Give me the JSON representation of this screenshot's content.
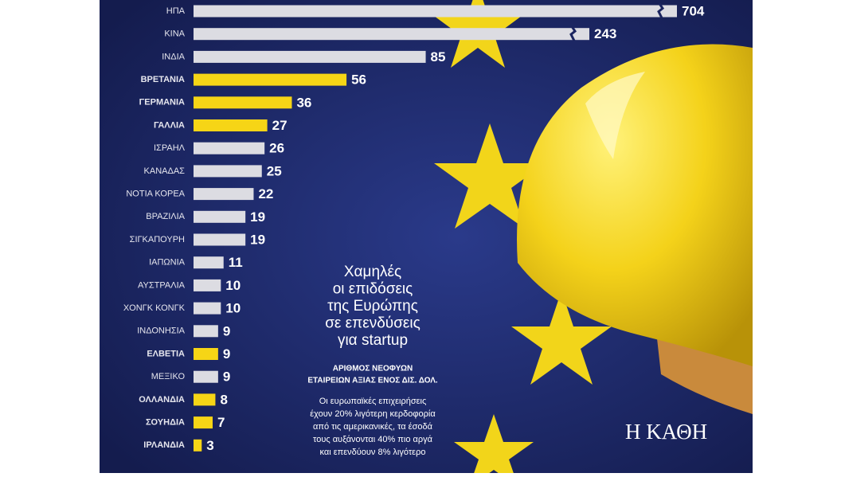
{
  "chart_data": {
    "type": "bar",
    "categories": [
      "ΗΠΑ",
      "ΚΙΝΑ",
      "ΙΝΔΙΑ",
      "ΒΡΕΤΑΝΙΑ",
      "ΓΕΡΜΑΝΙΑ",
      "ΓΑΛΛΙΑ",
      "ΙΣΡΑΗΛ",
      "ΚΑΝΑΔΑΣ",
      "ΝΟΤΙΑ ΚΟΡΕΑ",
      "ΒΡΑΖΙΛΙΑ",
      "ΣΙΓΚΑΠΟΥΡΗ",
      "ΙΑΠΩΝΙΑ",
      "ΑΥΣΤΡΑΛΙΑ",
      "ΧΟΝΓΚ ΚΟΝΓΚ",
      "ΙΝΔΟΝΗΣΙΑ",
      "ΕΛΒΕΤΙΑ",
      "ΜΕΞΙΚΟ",
      "ΟΛΛΑΝΔΙΑ",
      "ΣΟΥΗΔΙΑ",
      "ΙΡΛΑΝΔΙΑ"
    ],
    "values": [
      704,
      243,
      85,
      56,
      36,
      27,
      26,
      25,
      22,
      19,
      19,
      11,
      10,
      10,
      9,
      9,
      9,
      8,
      7,
      3
    ],
    "colors": [
      "#dcdce2",
      "#dcdce2",
      "#dcdce2",
      "#f6d516",
      "#f6d516",
      "#f6d516",
      "#dcdce2",
      "#dcdce2",
      "#dcdce2",
      "#dcdce2",
      "#dcdce2",
      "#dcdce2",
      "#dcdce2",
      "#dcdce2",
      "#dcdce2",
      "#f6d516",
      "#dcdce2",
      "#f6d516",
      "#f6d516",
      "#f6d516"
    ],
    "highlight_color": "#f6d516",
    "title_lines": [
      "Χαμηλές",
      "οι επιδόσεις",
      "της Ευρώπης",
      "σε επενδύσεις",
      "για startup"
    ],
    "subtitle_lines": [
      "ΑΡΙΘΜΟΣ ΝΕΟΦΥΩΝ",
      "ΕΤΑΙΡΕΙΩΝ ΑΞΙΑΣ ΕΝΟΣ ΔΙΣ. ΔΟΛ."
    ],
    "note_lines": [
      "Οι ευρωπαϊκές επιχειρήσεις",
      "έχουν 20% λιγότερη κερδοφορία",
      "από τις αμερικανικές, τα έσοδά",
      "τους αυξάνονται 40% πιο αργά",
      "και επενδύουν 8% λιγότερο"
    ]
  },
  "logo": "Η ΚΑΘΗ"
}
